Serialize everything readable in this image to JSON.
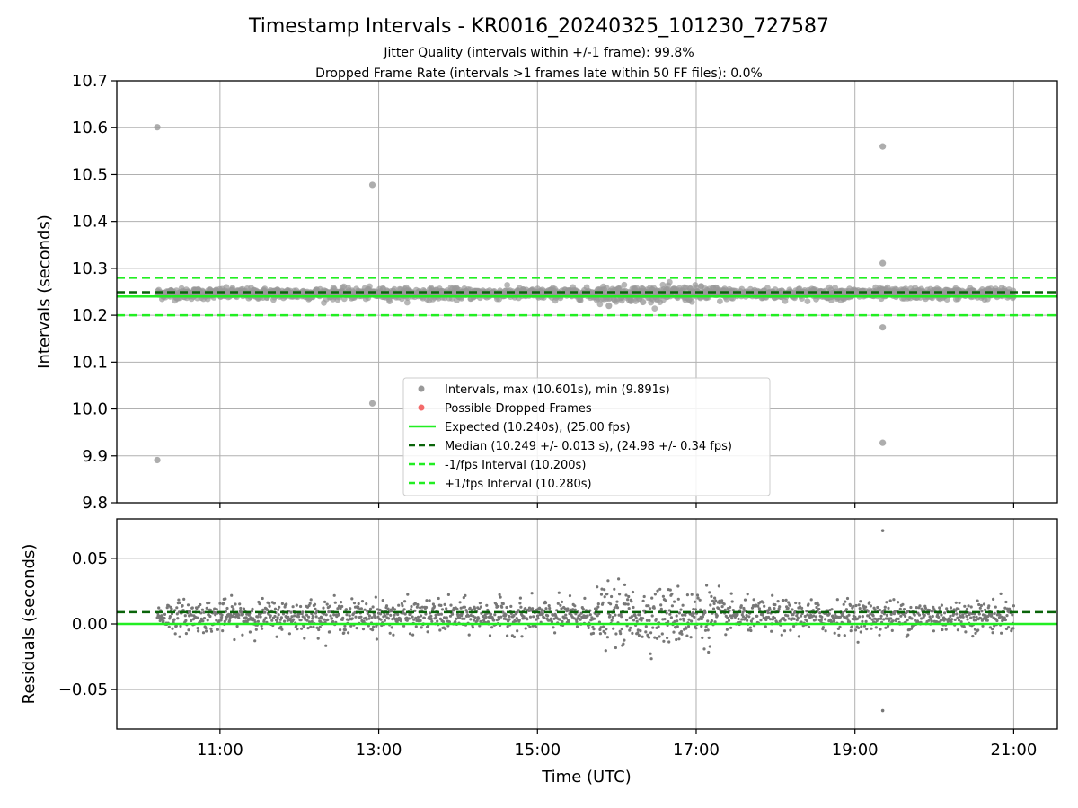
{
  "chart_data": {
    "type": "scatter",
    "title": "Timestamp Intervals - KR0016_20240325_101230_727587",
    "subtitle_lines": [
      "Jitter Quality (intervals within +/-1 frame): 99.8%",
      "Dropped Frame Rate (intervals >1 frames late within 50 FF files): 0.0%"
    ],
    "xlabel": "Time (UTC)",
    "x_ticks": [
      "11:00",
      "13:00",
      "15:00",
      "17:00",
      "19:00",
      "21:00"
    ],
    "x_tick_hours": [
      11,
      13,
      15,
      17,
      19,
      21
    ],
    "x_range_hours": [
      9.7,
      21.55
    ],
    "data_start_hour": 10.21,
    "data_end_hour": 21.0,
    "panels": [
      {
        "id": "intervals",
        "ylabel": "Intervals (seconds)",
        "ylim": [
          9.8,
          10.7
        ],
        "y_ticks": [
          9.8,
          9.9,
          10.0,
          10.1,
          10.2,
          10.3,
          10.4,
          10.5,
          10.6,
          10.7
        ],
        "y_tick_labels": [
          "9.8",
          "9.9",
          "10.0",
          "10.1",
          "10.2",
          "10.3",
          "10.4",
          "10.5",
          "10.6",
          "10.7"
        ],
        "grid": true,
        "band_center": 10.246,
        "band_spread": 0.007,
        "outliers": [
          {
            "hour": 10.21,
            "value": 10.601
          },
          {
            "hour": 10.21,
            "value": 9.891
          },
          {
            "hour": 12.92,
            "value": 10.478
          },
          {
            "hour": 12.92,
            "value": 10.012
          },
          {
            "hour": 15.9,
            "value": 10.22
          },
          {
            "hour": 16.33,
            "value": 10.228
          },
          {
            "hour": 19.35,
            "value": 10.56
          },
          {
            "hour": 19.35,
            "value": 10.311
          },
          {
            "hour": 19.35,
            "value": 10.174
          },
          {
            "hour": 19.35,
            "value": 9.928
          }
        ],
        "lines": [
          {
            "name": "Expected (10.240s), (25.00 fps)",
            "value": 10.24,
            "color": "#22ee22",
            "style": "solid"
          },
          {
            "name": "Median (10.249 +/- 0.013 s), (24.98 +/- 0.34 fps)",
            "value": 10.249,
            "color": "#0a640a",
            "style": "dashed"
          },
          {
            "name": "-1/fps Interval (10.200s)",
            "value": 10.2,
            "color": "#22ee22",
            "style": "dashed"
          },
          {
            "name": "+1/fps Interval (10.280s)",
            "value": 10.28,
            "color": "#22ee22",
            "style": "dashed"
          }
        ],
        "legend": {
          "position": "lower-center",
          "entries": [
            {
              "label": "Intervals, max (10.601s), min (9.891s)",
              "kind": "marker",
              "color": "#999999"
            },
            {
              "label": "Possible Dropped Frames",
              "kind": "marker",
              "color": "#f25050"
            },
            {
              "label": "Expected (10.240s), (25.00 fps)",
              "kind": "line",
              "color": "#22ee22",
              "style": "solid"
            },
            {
              "label": "Median (10.249 +/- 0.013 s), (24.98 +/- 0.34 fps)",
              "kind": "line",
              "color": "#0a640a",
              "style": "dashed"
            },
            {
              "label": "-1/fps Interval (10.200s)",
              "kind": "line",
              "color": "#22ee22",
              "style": "dashed"
            },
            {
              "label": "+1/fps Interval (10.280s)",
              "kind": "line",
              "color": "#22ee22",
              "style": "dashed"
            }
          ]
        }
      },
      {
        "id": "residuals",
        "ylabel": "Residuals (seconds)",
        "ylim": [
          -0.08,
          0.08
        ],
        "y_ticks": [
          -0.05,
          0.0,
          0.05
        ],
        "y_tick_labels": [
          "−0.05",
          "0.00",
          "0.05"
        ],
        "grid": true,
        "band_center": 0.006,
        "band_spread": 0.006,
        "outliers": [
          {
            "hour": 19.35,
            "value": 0.071
          },
          {
            "hour": 19.35,
            "value": -0.066
          }
        ],
        "lines": [
          {
            "name": "Expected",
            "value": 0.0,
            "color": "#22ee22",
            "style": "solid"
          },
          {
            "name": "Median",
            "value": 0.009,
            "color": "#0a640a",
            "style": "dashed"
          }
        ]
      }
    ]
  }
}
